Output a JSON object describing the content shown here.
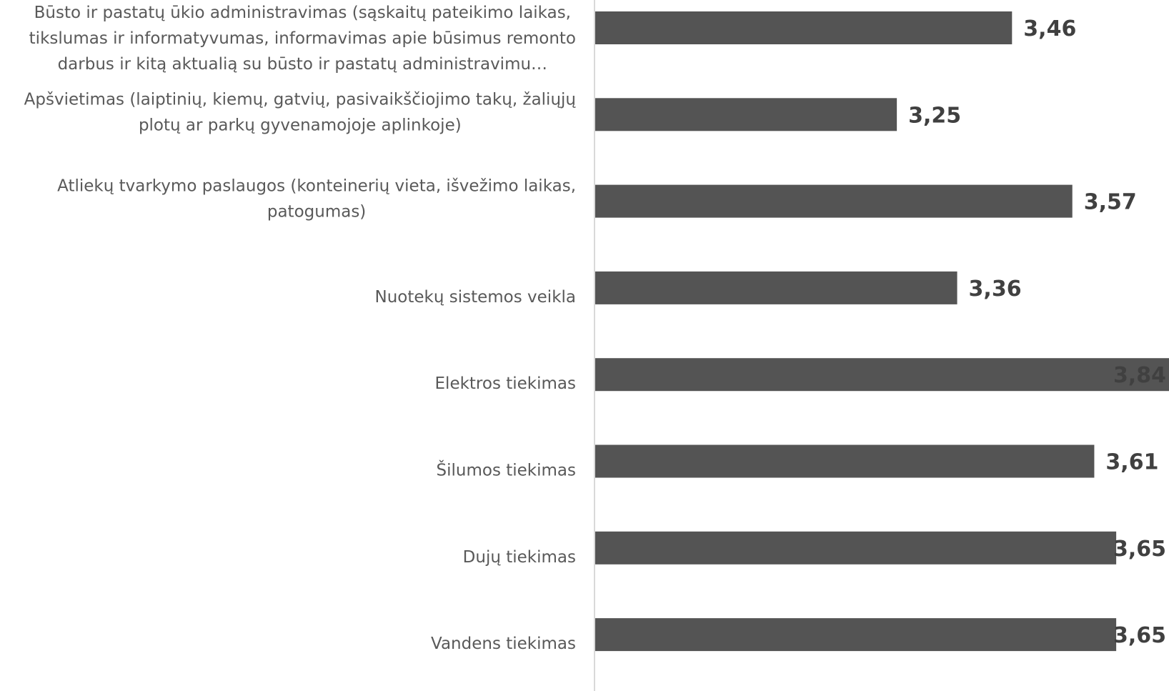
{
  "chart_data": {
    "type": "bar",
    "orientation": "horizontal",
    "title": "",
    "xlabel": "",
    "ylabel": "",
    "xlim": [
      2.7,
      3.84
    ],
    "grid": false,
    "legend": "none",
    "bar_color": "#545454",
    "axis_color": "#d9d9d9",
    "categories": [
      {
        "lines": [
          "Būsto ir pastatų ūkio administravimas (sąskaitų pateikimo laikas,",
          "tikslumas ir informatyvumas, informavimas apie būsimus remonto",
          "darbus ir kitą aktualią su būsto ir pastatų administravimu…"
        ]
      },
      {
        "lines": [
          "Apšvietimas (laiptinių, kiemų, gatvių, pasivaikščiojimo takų, žaliųjų",
          "plotų ar parkų gyvenamojoje aplinkoje)"
        ]
      },
      {
        "lines": [
          "Atliekų tvarkymo paslaugos (konteinerių vieta, išvežimo laikas,",
          "patogumas)"
        ]
      },
      {
        "lines": [
          "Nuotekų sistemos veikla"
        ]
      },
      {
        "lines": [
          "Elektros tiekimas"
        ]
      },
      {
        "lines": [
          "Šilumos tiekimas"
        ]
      },
      {
        "lines": [
          "Dujų tiekimas"
        ]
      },
      {
        "lines": [
          "Vandens tiekimas"
        ]
      }
    ],
    "values": [
      3.46,
      3.25,
      3.57,
      3.36,
      3.84,
      3.61,
      3.65,
      3.65
    ],
    "value_labels": [
      "3,46",
      "3,25",
      "3,57",
      "3,36",
      "3,84",
      "3,61",
      "3,65",
      "3,65"
    ]
  }
}
